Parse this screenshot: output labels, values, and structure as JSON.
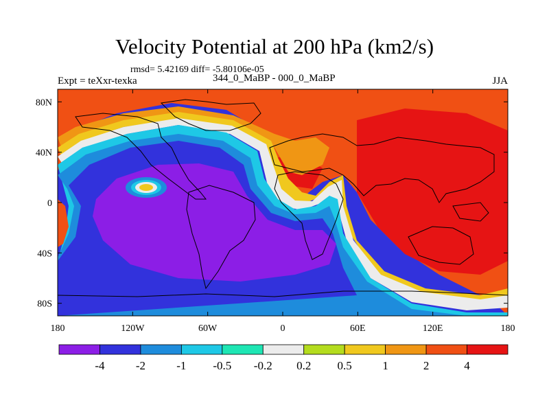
{
  "header": {
    "title": "Velocity Potential at 200 hPa (km2/s)",
    "stats": "rmsd= 5.42169 diff= -5.80106e-05",
    "experiment": "Expt = teXxr-texka",
    "difference": "344_0_MaBP - 000_0_MaBP",
    "season": "JJA"
  },
  "chart_data": {
    "type": "heatmap",
    "title": "Velocity Potential at 200 hPa (km2/s)",
    "xlabel": "",
    "ylabel": "",
    "xlim": [
      -180,
      180
    ],
    "ylim": [
      -90,
      90
    ],
    "x_ticks": [
      {
        "value": -180,
        "label": "180"
      },
      {
        "value": -120,
        "label": "120W"
      },
      {
        "value": -60,
        "label": "60W"
      },
      {
        "value": 0,
        "label": "0"
      },
      {
        "value": 60,
        "label": "60E"
      },
      {
        "value": 120,
        "label": "120E"
      },
      {
        "value": 180,
        "label": "180"
      }
    ],
    "y_ticks": [
      {
        "value": 80,
        "label": "80N"
      },
      {
        "value": 40,
        "label": "40N"
      },
      {
        "value": 0,
        "label": "0"
      },
      {
        "value": -40,
        "label": "40S"
      },
      {
        "value": -80,
        "label": "80S"
      }
    ],
    "colorbar": {
      "levels": [
        "-4",
        "-2",
        "-1",
        "-0.5",
        "-0.2",
        "0.2",
        "0.5",
        "1",
        "2",
        "4"
      ],
      "colors": [
        "#8c1ee6",
        "#3232dc",
        "#1e8cdc",
        "#1ec8e6",
        "#1ee6b4",
        "#ececec",
        "#b4dc1e",
        "#f0c81e",
        "#f09614",
        "#f05014",
        "#e61414"
      ]
    },
    "field_description": "Negative (blue/purple) over Americas, Atlantic and Southern Ocean; positive (red) over Europe, Asia, Indian Ocean and Australia"
  }
}
